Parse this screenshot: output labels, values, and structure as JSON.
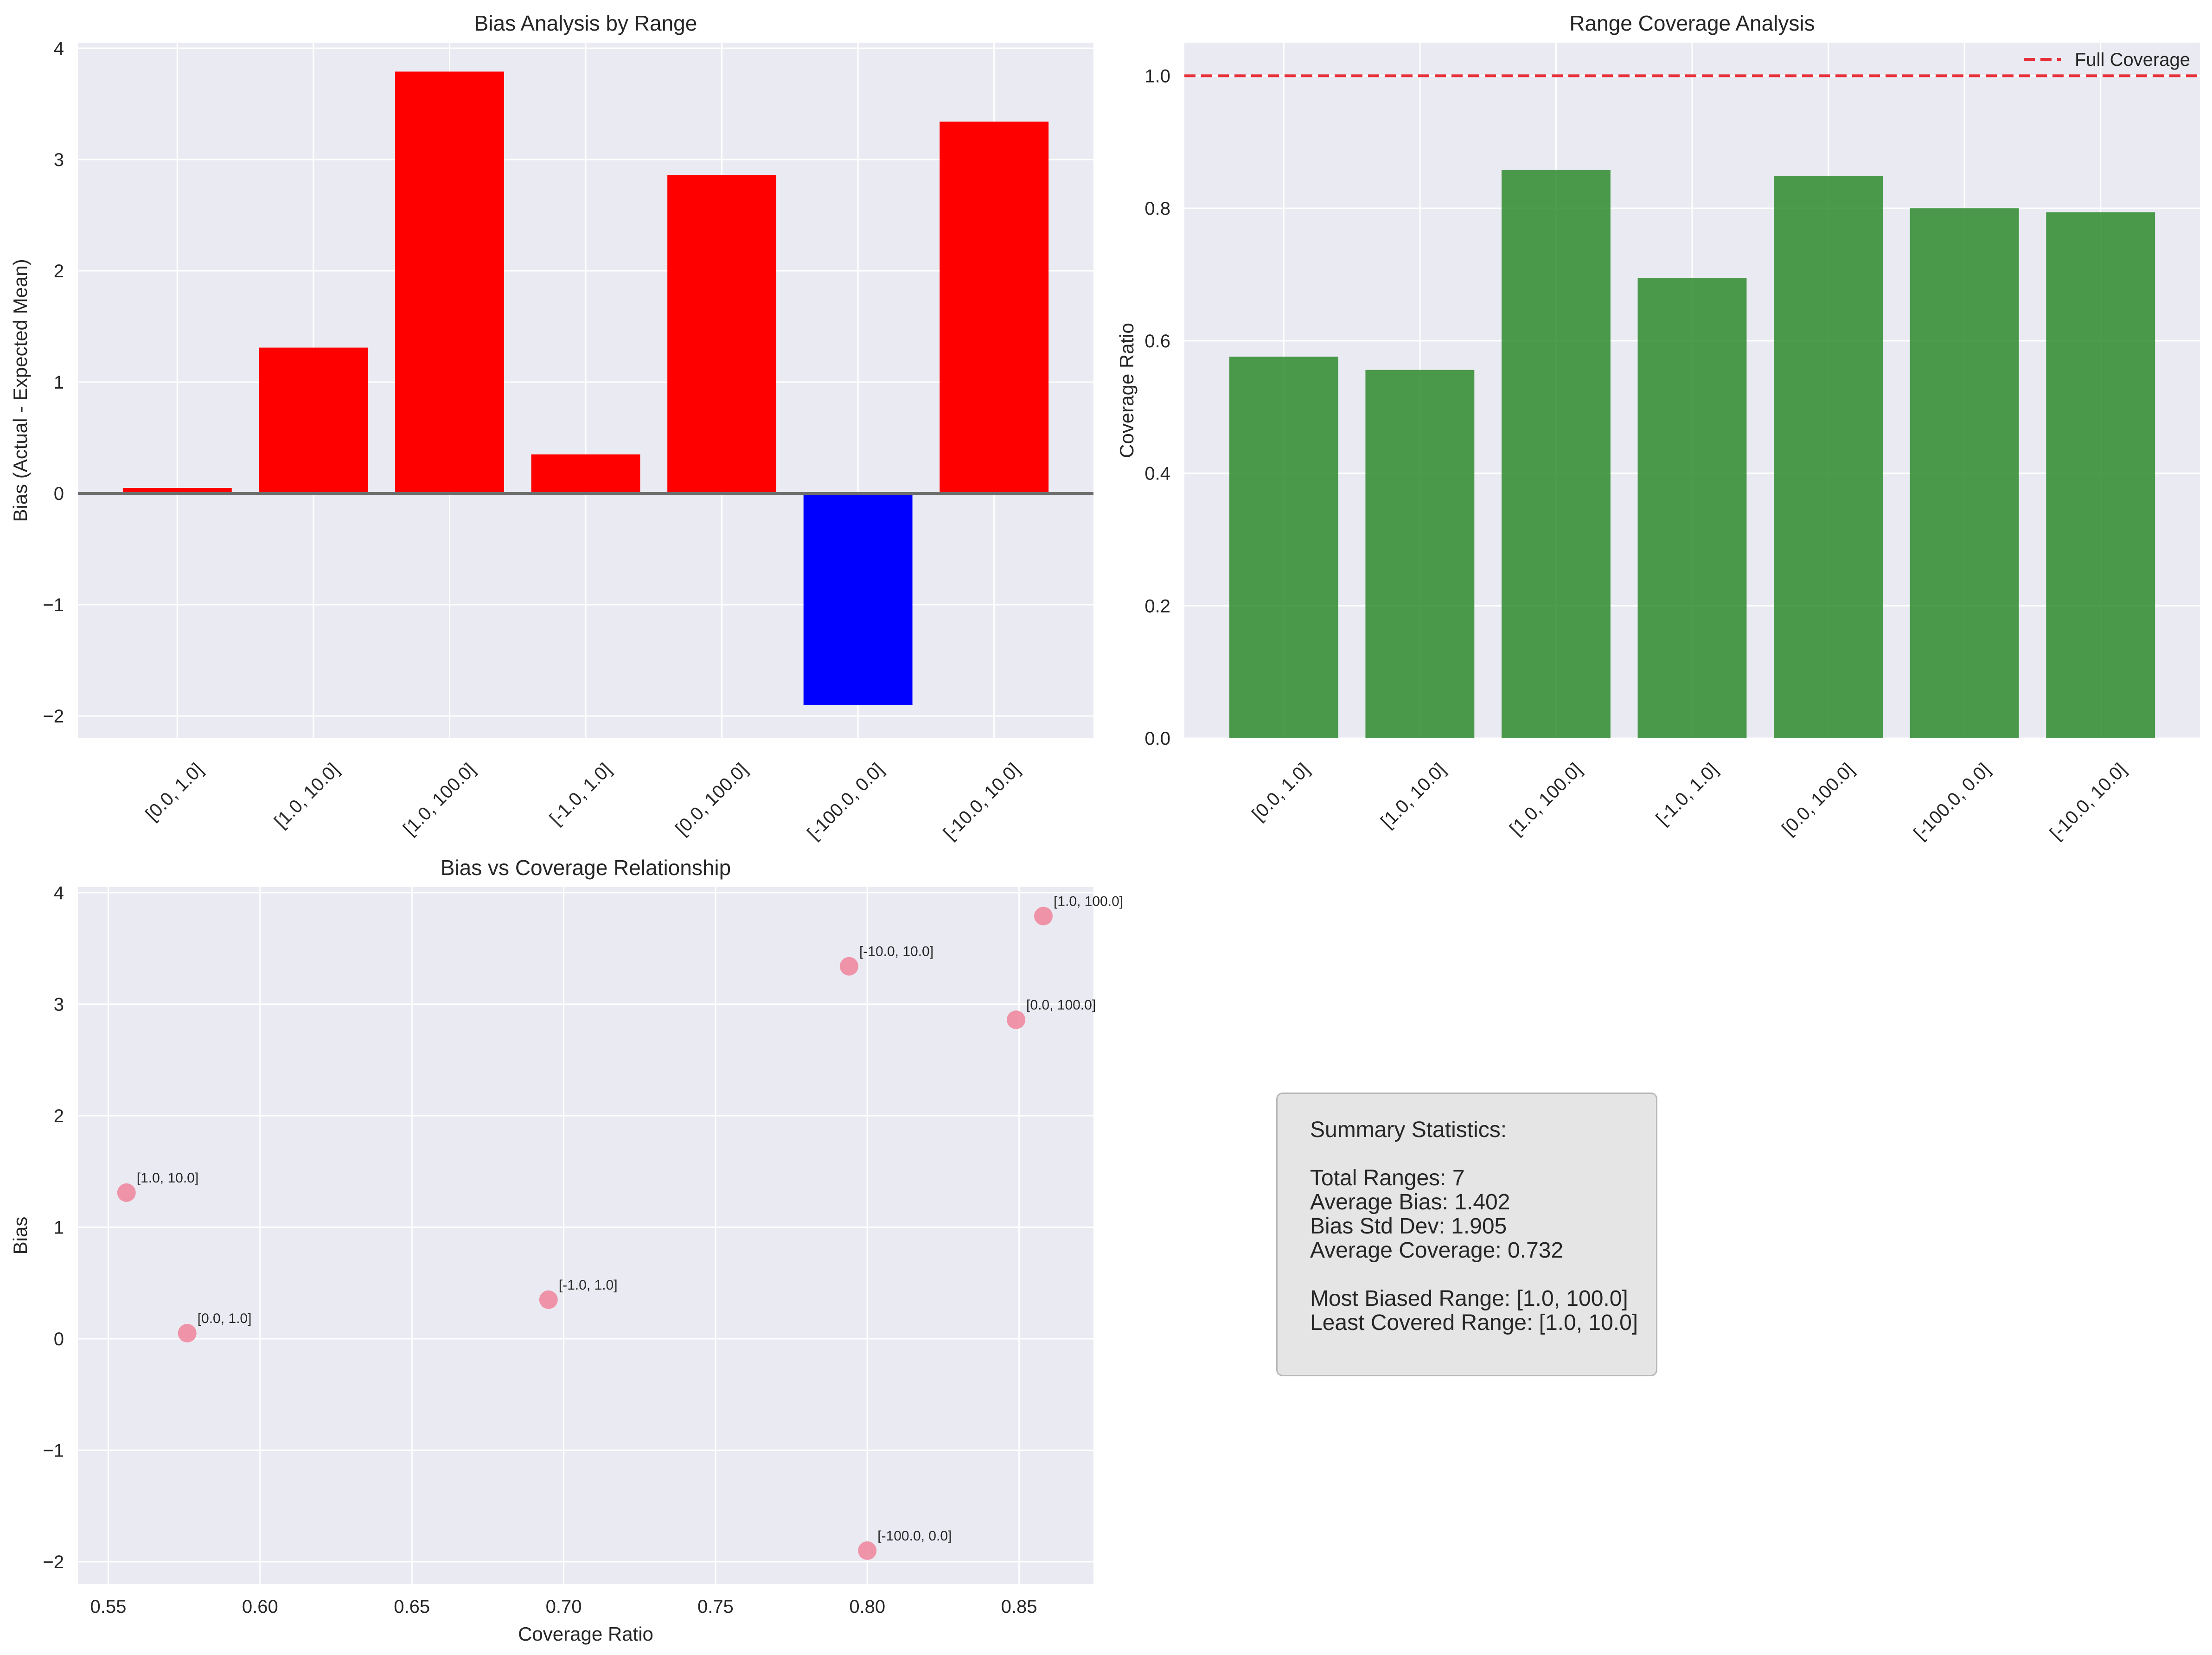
{
  "chart_data": [
    {
      "type": "bar",
      "title": "Bias Analysis by Range",
      "xlabel": "",
      "ylabel": "Bias (Actual - Expected Mean)",
      "categories": [
        "[0.0, 1.0]",
        "[1.0, 10.0]",
        "[1.0, 100.0]",
        "[-1.0, 1.0]",
        "[0.0, 100.0]",
        "[-100.0, 0.0]",
        "[-10.0, 10.0]"
      ],
      "values": [
        0.05,
        1.31,
        3.79,
        0.35,
        2.86,
        -1.9,
        3.34
      ],
      "bar_colors": [
        "#ff0000",
        "#ff0000",
        "#ff0000",
        "#ff0000",
        "#ff0000",
        "#0000ff",
        "#ff0000"
      ],
      "ylim": [
        -2.2,
        4.05
      ],
      "yticks": [
        -2,
        -1,
        0,
        1,
        2,
        3,
        4
      ],
      "ytick_labels": [
        "−2",
        "−1",
        "0",
        "1",
        "2",
        "3",
        "4"
      ],
      "reference_line": 0,
      "grid": true
    },
    {
      "type": "bar",
      "title": "Range Coverage Analysis",
      "xlabel": "",
      "ylabel": "Coverage Ratio",
      "categories": [
        "[0.0, 1.0]",
        "[1.0, 10.0]",
        "[1.0, 100.0]",
        "[-1.0, 1.0]",
        "[0.0, 100.0]",
        "[-100.0, 0.0]",
        "[-10.0, 10.0]"
      ],
      "values": [
        0.576,
        0.556,
        0.858,
        0.695,
        0.849,
        0.8,
        0.794
      ],
      "bar_color": "#2e8b2e",
      "ylim": [
        0,
        1.05
      ],
      "yticks": [
        0.0,
        0.2,
        0.4,
        0.6,
        0.8,
        1.0
      ],
      "ytick_labels": [
        "0.0",
        "0.2",
        "0.4",
        "0.6",
        "0.8",
        "1.0"
      ],
      "reference_line": 1.0,
      "reference_color": "#e8303a",
      "legend": {
        "label": "Full Coverage",
        "placement": "top-right"
      },
      "grid": true
    },
    {
      "type": "scatter",
      "title": "Bias vs Coverage Relationship",
      "xlabel": "Coverage Ratio",
      "ylabel": "Bias",
      "points": [
        {
          "x": 0.576,
          "y": 0.05,
          "label": "[0.0, 1.0]"
        },
        {
          "x": 0.556,
          "y": 1.31,
          "label": "[1.0, 10.0]"
        },
        {
          "x": 0.858,
          "y": 3.79,
          "label": "[1.0, 100.0]"
        },
        {
          "x": 0.695,
          "y": 0.35,
          "label": "[-1.0, 1.0]"
        },
        {
          "x": 0.849,
          "y": 2.86,
          "label": "[0.0, 100.0]"
        },
        {
          "x": 0.8,
          "y": -1.9,
          "label": "[-100.0, 0.0]"
        },
        {
          "x": 0.794,
          "y": 3.34,
          "label": "[-10.0, 10.0]"
        }
      ],
      "point_color": "#f08aa0",
      "xlim": [
        0.54,
        0.8745
      ],
      "ylim": [
        -2.2,
        4.05
      ],
      "xticks": [
        0.55,
        0.6,
        0.65,
        0.7,
        0.75,
        0.8,
        0.85
      ],
      "xtick_labels": [
        "0.55",
        "0.60",
        "0.65",
        "0.70",
        "0.75",
        "0.80",
        "0.85"
      ],
      "yticks": [
        -2,
        -1,
        0,
        1,
        2,
        3,
        4
      ],
      "ytick_labels": [
        "−2",
        "−1",
        "0",
        "1",
        "2",
        "3",
        "4"
      ],
      "grid": true
    }
  ],
  "summary": {
    "title": "Summary Statistics:",
    "total_ranges": "Total Ranges: 7",
    "average_bias": "Average Bias: 1.402",
    "bias_std": "Bias Std Dev: 1.905",
    "average_coverage": "Average Coverage: 0.732",
    "most_biased": "Most Biased Range: [1.0, 100.0]",
    "least_covered": "Least Covered Range: [1.0, 10.0]"
  }
}
